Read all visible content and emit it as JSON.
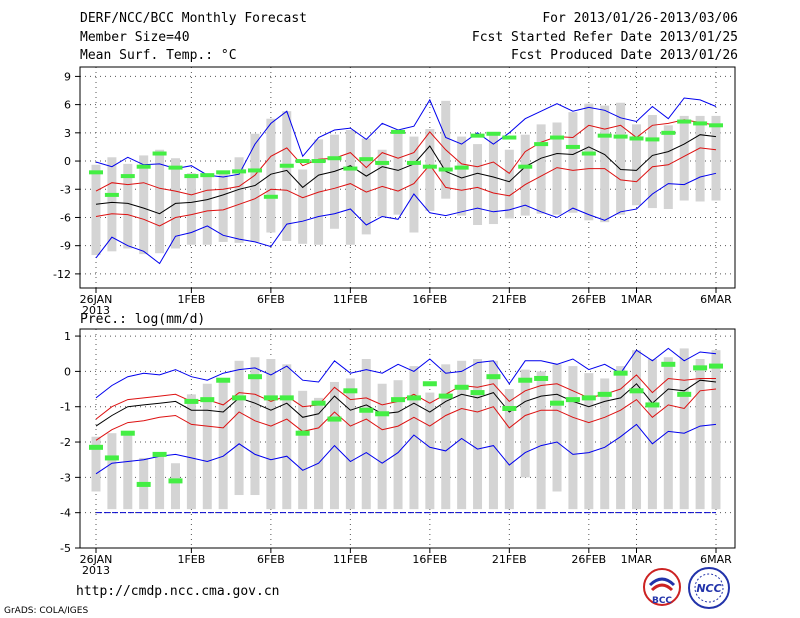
{
  "header": {
    "title": "DERF/NCC/BCC Monthly Forecast",
    "member_size": "Member Size=40",
    "variable": "Mean Surf. Temp.: °C",
    "period": "For 2013/01/26-2013/03/06",
    "fcst_started": "Fcst Started Refer Date 2013/01/25",
    "fcst_produced": "Fcst Produced Date 2013/01/26"
  },
  "precip_label": "Prec.: log(mm/d)",
  "footer": {
    "url": "http://cmdp.ncc.cma.gov.cn",
    "grads": "GrADS: COLA/IGES",
    "logo_left_text": "BCC",
    "logo_right_text": "NCC"
  },
  "colors": {
    "box": "#d4d4d4",
    "obs": "#44ee44",
    "envelope": "#0000ee",
    "quartile": "#dd1111",
    "median": "#000000",
    "floor": "#0000cc"
  },
  "x_ticks": [
    {
      "day": 0,
      "label": "26JAN",
      "sub": "2013"
    },
    {
      "day": 6,
      "label": "1FEB"
    },
    {
      "day": 11,
      "label": "6FEB"
    },
    {
      "day": 16,
      "label": "11FEB"
    },
    {
      "day": 21,
      "label": "16FEB"
    },
    {
      "day": 26,
      "label": "21FEB"
    },
    {
      "day": 31,
      "label": "26FEB"
    },
    {
      "day": 34,
      "label": "1MAR"
    },
    {
      "day": 39,
      "label": "6MAR"
    }
  ],
  "chart_data": [
    {
      "type": "box",
      "name": "temperature",
      "ylabel": "Mean Surf. Temp.: °C",
      "ylim": [
        -13.5,
        10
      ],
      "yticks": [
        -12,
        -9,
        -6,
        -3,
        0,
        3,
        6,
        9
      ],
      "days": 40,
      "max": [
        -0.4,
        0.4,
        -0.3,
        0.6,
        1.2,
        0.3,
        -1.3,
        -1.4,
        -1.3,
        0.4,
        2.9,
        4.5,
        5.3,
        -0.9,
        2.3,
        2.8,
        3.3,
        2.4,
        1.2,
        3.3,
        2.6,
        3.4,
        6.4,
        2.6,
        1.8,
        3.0,
        1.2,
        2.8,
        3.9,
        4.1,
        5.2,
        6.1,
        5.9,
        6.2,
        3.9,
        4.9,
        3.8,
        4.8,
        4.8,
        4.8
      ],
      "q3": [
        -3.4,
        -2.4,
        -2.1,
        -2.5,
        -2.4,
        -2.5,
        -3.6,
        -3.2,
        -2.9,
        -2.3,
        -1.4,
        -0.4,
        0.9,
        -2.3,
        -0.6,
        0.1,
        0.4,
        -0.6,
        -1.0,
        0.1,
        -0.9,
        0.6,
        1.7,
        -0.5,
        -1.4,
        -0.9,
        -1.7,
        -0.3,
        0.1,
        1.8,
        2.2,
        2.6,
        1.2,
        -0.6,
        -0.9,
        1.5,
        1.0,
        2.2,
        1.9,
        2.4
      ],
      "median": [
        -4.5,
        -4.2,
        -4.6,
        -5.5,
        -5.0,
        -4.2,
        -4.6,
        -4.2,
        -3.6,
        -3.2,
        -2.8,
        -1.6,
        -1.4,
        -4.1,
        -2.0,
        -1.6,
        -0.9,
        -1.8,
        -1.4,
        -1.2,
        -2.3,
        -0.6,
        0.9,
        -1.4,
        -1.8,
        -1.8,
        -2.1,
        -1.3,
        -0.7,
        0.3,
        0.6,
        0.4,
        0.3,
        -0.4,
        -0.7,
        0.9,
        1.0,
        1.6,
        1.8,
        2.3
      ],
      "q1": [
        -5.7,
        -5.5,
        -5.9,
        -6.1,
        -6.9,
        -5.9,
        -5.7,
        -5.6,
        -5.2,
        -5.1,
        -4.5,
        -3.6,
        -3.2,
        -4.6,
        -3.6,
        -3.5,
        -3.1,
        -3.5,
        -2.8,
        -2.7,
        -3.7,
        -2.2,
        -1.0,
        -3.5,
        -3.9,
        -3.3,
        -3.6,
        -3.0,
        -2.3,
        -1.3,
        -1.2,
        -1.5,
        -1.3,
        -1.8,
        -2.4,
        -0.8,
        -0.6,
        -0.5,
        0.4,
        0.7
      ],
      "min": [
        -10.0,
        -9.6,
        -9.3,
        -9.9,
        -9.8,
        -9.3,
        -8.9,
        -8.9,
        -8.6,
        -8.7,
        -8.6,
        -7.6,
        -8.5,
        -8.8,
        -8.9,
        -7.2,
        -8.9,
        -7.8,
        -5.9,
        -5.7,
        -7.6,
        -5.3,
        -4.0,
        -5.8,
        -6.8,
        -6.7,
        -6.1,
        -5.8,
        -5.6,
        -5.7,
        -5.5,
        -6.3,
        -6.5,
        -5.7,
        -4.7,
        -5.0,
        -5.1,
        -4.2,
        -4.3,
        -4.2
      ],
      "ens_max": [
        -0.1,
        -0.6,
        0.4,
        -0.4,
        -0.3,
        -0.8,
        -0.5,
        -1.5,
        -1.7,
        -1.4,
        1.8,
        4.0,
        5.3,
        0.5,
        2.5,
        3.3,
        3.5,
        2.3,
        4.0,
        3.3,
        3.7,
        6.5,
        2.5,
        1.8,
        3.0,
        1.8,
        3.0,
        4.5,
        5.3,
        6.1,
        5.3,
        5.7,
        5.4,
        4.6,
        4.2,
        5.8,
        4.5,
        6.7,
        6.5,
        5.8
      ],
      "ens_q3": [
        -3.2,
        -2.3,
        -2.5,
        -2.3,
        -2.9,
        -3.2,
        -3.6,
        -3.1,
        -3.0,
        -2.7,
        -1.5,
        0.5,
        1.4,
        -0.5,
        0.2,
        0.3,
        0.9,
        -0.7,
        0.9,
        0.3,
        0.9,
        3.1,
        1.2,
        -0.3,
        -0.6,
        -0.1,
        -1.3,
        1.0,
        2.0,
        2.6,
        2.5,
        3.8,
        3.4,
        3.8,
        2.5,
        3.8,
        4.0,
        4.4,
        4.1,
        3.8
      ],
      "ens_med": [
        -4.6,
        -4.4,
        -4.5,
        -5.0,
        -5.6,
        -4.5,
        -4.4,
        -4.1,
        -3.6,
        -3.0,
        -2.6,
        -1.4,
        -1.0,
        -2.8,
        -1.5,
        -1.1,
        -0.5,
        -1.6,
        -0.6,
        -1.0,
        -0.3,
        1.6,
        -1.1,
        -1.8,
        -1.3,
        -1.7,
        -2.2,
        -0.6,
        0.3,
        0.8,
        0.7,
        1.5,
        0.7,
        -0.9,
        -1.0,
        0.6,
        1.0,
        1.8,
        2.8,
        2.6
      ],
      "ens_q1": [
        -5.9,
        -5.6,
        -5.7,
        -6.2,
        -6.9,
        -6.0,
        -5.7,
        -5.3,
        -5.2,
        -4.6,
        -4.0,
        -3.0,
        -3.1,
        -3.9,
        -3.3,
        -2.9,
        -2.4,
        -3.3,
        -2.7,
        -3.2,
        -2.4,
        -0.4,
        -2.8,
        -3.1,
        -2.8,
        -3.4,
        -3.7,
        -2.5,
        -1.6,
        -0.7,
        -1.0,
        -0.8,
        -0.8,
        -2.0,
        -2.2,
        -0.6,
        -0.4,
        0.5,
        1.4,
        1.2
      ],
      "ens_min": [
        -10.3,
        -8.1,
        -9.0,
        -9.6,
        -10.9,
        -8.0,
        -7.6,
        -6.9,
        -7.9,
        -8.3,
        -8.6,
        -9.1,
        -6.7,
        -6.4,
        -5.9,
        -5.6,
        -5.1,
        -6.8,
        -5.9,
        -6.2,
        -3.5,
        -5.5,
        -5.8,
        -5.4,
        -5.0,
        -5.4,
        -5.2,
        -4.7,
        -5.4,
        -6.0,
        -5.0,
        -5.7,
        -6.3,
        -5.4,
        -5.1,
        -3.5,
        -2.4,
        -2.5,
        -1.7,
        -1.3
      ],
      "obs": [
        -1.2,
        -3.6,
        -1.6,
        -0.6,
        0.8,
        -0.7,
        -1.6,
        -1.5,
        -1.2,
        -1.1,
        -1.0,
        -3.8,
        -0.5,
        0.0,
        0.0,
        0.3,
        -0.8,
        0.2,
        -0.2,
        3.1,
        -0.2,
        -0.6,
        -0.9,
        -0.7,
        2.7,
        2.9,
        2.5,
        -0.6,
        1.8,
        2.5,
        1.5,
        0.8,
        2.7,
        2.6,
        2.4,
        2.3,
        3.0,
        4.2,
        4.0,
        3.8
      ]
    },
    {
      "type": "box",
      "name": "precipitation",
      "ylabel": "Prec.: log(mm/d)",
      "ylim": [
        -5,
        1.2
      ],
      "yticks": [
        -5,
        -4,
        -3,
        -2,
        -1,
        0,
        1
      ],
      "floor": -4,
      "days": 40,
      "max": [
        -1.85,
        -1.75,
        -1.7,
        -2.45,
        -2.3,
        -2.6,
        -0.65,
        -0.35,
        -0.2,
        0.3,
        0.4,
        0.35,
        0.2,
        -0.55,
        -0.75,
        -0.3,
        -0.2,
        0.35,
        -0.35,
        -0.25,
        0.15,
        -0.6,
        0.2,
        0.3,
        0.35,
        0.3,
        -0.5,
        0.05,
        0.0,
        0.2,
        0.15,
        -0.05,
        -0.2,
        0.15,
        0.6,
        0.35,
        0.4,
        0.65,
        0.35,
        0.6
      ],
      "q3": [
        -1.9,
        -2.1,
        -2.2,
        -2.5,
        -2.4,
        -2.5,
        -0.65,
        -0.85,
        -0.8,
        -0.95,
        -0.75,
        -0.65,
        -0.35,
        -0.7,
        -1.2,
        -0.6,
        -0.9,
        -0.65,
        -0.8,
        -0.75,
        -0.55,
        -0.85,
        -0.6,
        -0.35,
        -0.55,
        -0.3,
        -1.1,
        -0.35,
        -0.15,
        -0.15,
        -0.35,
        -0.55,
        -0.65,
        -0.75,
        -0.35,
        -0.5,
        -0.4,
        -0.3,
        -0.45,
        -0.4
      ],
      "median": [
        -1.45,
        -1.05,
        -0.85,
        -0.75,
        -0.7,
        -0.55,
        -0.9,
        -0.8,
        -0.85,
        -0.6,
        -0.65,
        -0.85,
        -0.7,
        -1.05,
        -1.1,
        -0.7,
        -0.9,
        -0.7,
        -0.9,
        -1.05,
        -0.8,
        -1.05,
        -0.8,
        -0.65,
        -0.6,
        -0.55,
        -0.95,
        -0.75,
        -0.55,
        -0.65,
        -0.8,
        -0.95,
        -0.65,
        -0.8,
        -0.6,
        -0.45,
        -0.55,
        -0.3,
        -0.45,
        -0.4
      ],
      "q1": [
        -2.3,
        -2.5,
        -2.3,
        -2.6,
        -2.6,
        -2.7,
        -2.5,
        -2.3,
        -2.3,
        -2.1,
        -2.1,
        -2.2,
        -2.4,
        -2.6,
        -2.5,
        -2.2,
        -2.6,
        -2.2,
        -2.5,
        -2.5,
        -2.3,
        -2.4,
        -2.3,
        -2.1,
        -2.3,
        -2.4,
        -2.4,
        -2.2,
        -2.2,
        -2.0,
        -2.4,
        -2.2,
        -2.3,
        -2.4,
        -2.2,
        -1.9,
        -2.0,
        -1.7,
        -2.1,
        -2.3
      ],
      "min": [
        -3.4,
        -3.9,
        -3.9,
        -3.9,
        -3.9,
        -3.9,
        -3.9,
        -3.9,
        -3.9,
        -3.5,
        -3.5,
        -3.9,
        -3.9,
        -3.9,
        -3.9,
        -3.9,
        -3.9,
        -3.9,
        -3.9,
        -3.9,
        -3.9,
        -3.9,
        -3.9,
        -3.9,
        -3.9,
        -3.9,
        -3.9,
        -3.0,
        -3.9,
        -3.4,
        -3.9,
        -3.9,
        -3.9,
        -3.9,
        -3.9,
        -3.9,
        -3.9,
        -3.9,
        -3.9,
        -3.9
      ],
      "ens_max": [
        -0.75,
        -0.4,
        -0.15,
        -0.05,
        -0.1,
        0.05,
        -0.15,
        -0.25,
        -0.05,
        0.05,
        0.1,
        -0.1,
        0.15,
        -0.25,
        -0.3,
        0.3,
        -0.05,
        0.05,
        -0.05,
        0.2,
        0.0,
        0.35,
        -0.05,
        0.0,
        0.25,
        0.3,
        -0.35,
        0.3,
        0.3,
        0.2,
        0.35,
        0.05,
        0.2,
        -0.05,
        0.6,
        0.3,
        0.65,
        0.3,
        0.55,
        0.5
      ],
      "ens_q3": [
        -1.35,
        -1.0,
        -0.8,
        -0.75,
        -0.7,
        -0.65,
        -0.85,
        -0.8,
        -0.95,
        -0.6,
        -0.65,
        -0.85,
        -0.7,
        -1.0,
        -0.95,
        -0.45,
        -0.8,
        -0.75,
        -0.95,
        -0.85,
        -0.65,
        -0.9,
        -0.65,
        -0.4,
        -0.45,
        -0.35,
        -0.85,
        -0.55,
        -0.4,
        -0.35,
        -0.55,
        -0.75,
        -0.65,
        -0.5,
        -0.1,
        -0.6,
        -0.2,
        -0.25,
        -0.2,
        -0.2
      ],
      "ens_med": [
        -1.55,
        -1.25,
        -1.0,
        -0.95,
        -0.9,
        -0.85,
        -1.1,
        -1.1,
        -1.15,
        -0.75,
        -0.9,
        -1.1,
        -0.9,
        -1.3,
        -1.2,
        -0.7,
        -1.1,
        -0.95,
        -1.2,
        -1.15,
        -0.9,
        -1.15,
        -0.85,
        -0.65,
        -0.75,
        -0.6,
        -1.15,
        -0.85,
        -0.7,
        -0.65,
        -0.85,
        -1.0,
        -0.85,
        -0.75,
        -0.35,
        -0.9,
        -0.5,
        -0.55,
        -0.25,
        -0.3
      ],
      "ens_q1": [
        -1.95,
        -1.65,
        -1.45,
        -1.4,
        -1.3,
        -1.25,
        -1.5,
        -1.55,
        -1.6,
        -1.15,
        -1.4,
        -1.55,
        -1.35,
        -1.7,
        -1.6,
        -1.15,
        -1.55,
        -1.35,
        -1.65,
        -1.55,
        -1.3,
        -1.55,
        -1.25,
        -1.05,
        -1.15,
        -1.0,
        -1.6,
        -1.25,
        -1.1,
        -1.1,
        -1.3,
        -1.45,
        -1.3,
        -1.1,
        -0.8,
        -1.3,
        -0.95,
        -1.05,
        -0.55,
        -0.5
      ],
      "ens_min": [
        -2.9,
        -2.6,
        -2.55,
        -2.5,
        -2.4,
        -2.35,
        -2.45,
        -2.55,
        -2.4,
        -2.05,
        -2.35,
        -2.5,
        -2.4,
        -2.8,
        -2.6,
        -2.1,
        -2.55,
        -2.3,
        -2.6,
        -2.3,
        -1.8,
        -2.15,
        -2.25,
        -1.9,
        -2.2,
        -2.1,
        -2.65,
        -2.3,
        -2.1,
        -2.0,
        -2.35,
        -2.3,
        -2.15,
        -1.85,
        -1.5,
        -2.05,
        -1.7,
        -1.75,
        -1.55,
        -1.5
      ],
      "obs": [
        -2.15,
        -2.45,
        -1.75,
        -3.2,
        -2.35,
        -3.1,
        -0.85,
        -0.8,
        -0.25,
        -0.75,
        -0.15,
        -0.75,
        -0.75,
        -1.75,
        -0.9,
        -1.35,
        -0.55,
        -1.1,
        -1.2,
        -0.8,
        -0.75,
        -0.35,
        -0.7,
        -0.45,
        -0.6,
        -0.15,
        -1.05,
        -0.25,
        -0.2,
        -0.9,
        -0.8,
        -0.75,
        -0.65,
        -0.05,
        -0.55,
        -0.95,
        0.2,
        -0.65,
        0.1,
        0.15
      ]
    }
  ]
}
